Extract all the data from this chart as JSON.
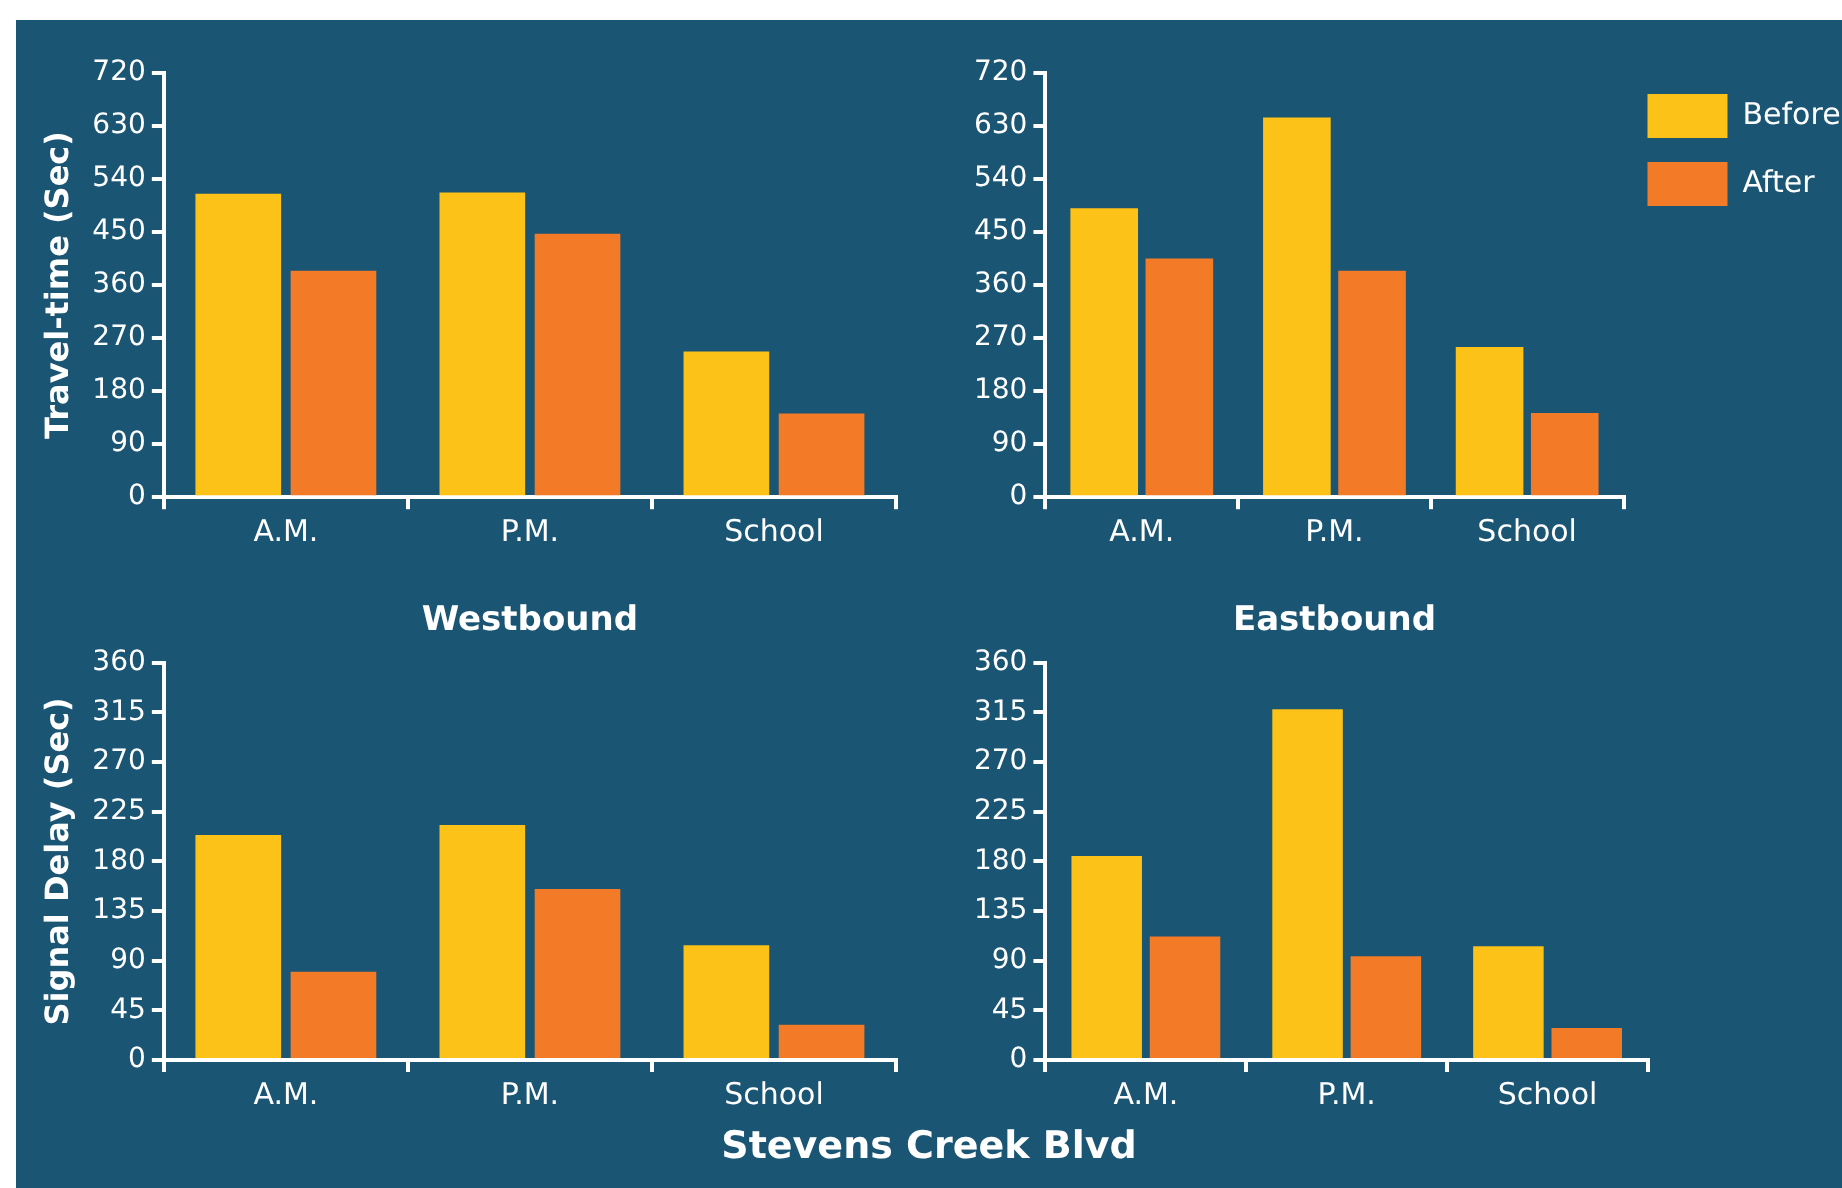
{
  "chart_data": [
    {
      "type": "bar",
      "xlabel": "Westbound",
      "ylabel": "Travel-time (Sec)",
      "categories": [
        "A.M.",
        "P.M.",
        "School"
      ],
      "series": [
        {
          "color": "#fdc217",
          "values": [
            515,
            517,
            247
          ]
        },
        {
          "color": "#f37a26",
          "values": [
            384,
            447,
            142
          ]
        }
      ],
      "ylim": [
        0,
        720
      ],
      "yticks": [
        0,
        90,
        180,
        270,
        360,
        450,
        540,
        630,
        720
      ],
      "grid": false,
      "legend": false
    },
    {
      "type": "bar",
      "xlabel": "Eastbound",
      "categories": [
        "A.M.",
        "P.M.",
        "School"
      ],
      "series": [
        {
          "name": "Before",
          "color": "#fdc217",
          "values": [
            490,
            644,
            255
          ]
        },
        {
          "name": "After",
          "color": "#f37a26",
          "values": [
            405,
            384,
            143
          ]
        }
      ],
      "ylim": [
        0,
        720
      ],
      "yticks": [
        0,
        90,
        180,
        270,
        360,
        450,
        540,
        630,
        720
      ],
      "grid": false,
      "legend": "top right"
    },
    {
      "type": "bar",
      "ylabel": "Signal Delay (Sec)",
      "categories": [
        "A.M.",
        "P.M.",
        "School"
      ],
      "series": [
        {
          "color": "#fdc217",
          "values": [
            204,
            213,
            104
          ]
        },
        {
          "color": "#f37a26",
          "values": [
            80,
            155,
            32
          ]
        }
      ],
      "ylim": [
        0,
        360
      ],
      "yticks": [
        0,
        45,
        90,
        135,
        180,
        225,
        270,
        315,
        360
      ],
      "grid": false,
      "legend": false,
      "annotations": [
        "Stevens Creek Blvd"
      ]
    },
    {
      "type": "bar",
      "categories": [
        "A.M.",
        "P.M.",
        "School"
      ],
      "series": [
        {
          "color": "#fdc217",
          "values": [
            185,
            318,
            103
          ]
        },
        {
          "color": "#f37a26",
          "values": [
            112,
            94,
            29
          ]
        }
      ],
      "ylim": [
        0,
        360
      ],
      "yticks": [
        0,
        45,
        90,
        135,
        180,
        225,
        270,
        315,
        360
      ],
      "grid": false,
      "legend": false
    }
  ]
}
